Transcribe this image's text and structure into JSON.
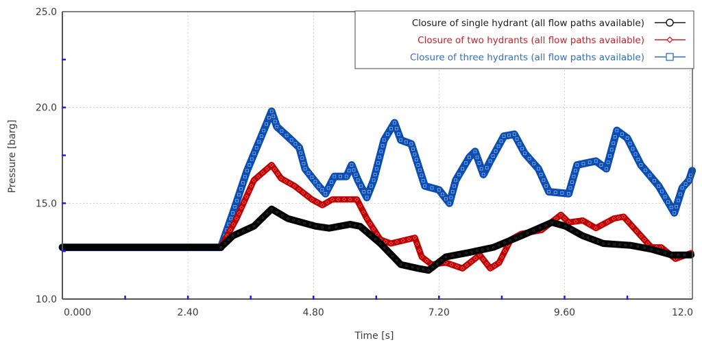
{
  "chart_data": {
    "type": "line",
    "title": "",
    "xlabel": "Time [s]",
    "ylabel": "Pressure [barg]",
    "xlim": [
      0,
      12.05
    ],
    "ylim": [
      10.0,
      25.0
    ],
    "x_ticks": [
      "0.000",
      "2.40",
      "4.80",
      "7.20",
      "9.60",
      "12.0"
    ],
    "x_tick_values": [
      0,
      2.4,
      4.8,
      7.2,
      9.6,
      12.0
    ],
    "x_minor_ticks": [
      1.2,
      3.6,
      6.0,
      8.4,
      10.8
    ],
    "y_ticks": [
      "10.0",
      "15.0",
      "20.0",
      "25.0"
    ],
    "y_tick_values": [
      10,
      15,
      20,
      25
    ],
    "y_minor_ticks": [
      12.5,
      17.5,
      22.5
    ],
    "grid": "dotted, major ticks only",
    "legend_position": "upper right, inside plot",
    "series": [
      {
        "name": "Closure of single hydrant (all flow paths available)",
        "color": "#000000",
        "marker": "circle",
        "points": [
          [
            0,
            12.7
          ],
          [
            3.03,
            12.7
          ],
          [
            3.26,
            13.3
          ],
          [
            3.66,
            13.8
          ],
          [
            4.0,
            14.7
          ],
          [
            4.31,
            14.2
          ],
          [
            4.84,
            13.8
          ],
          [
            5.1,
            13.7
          ],
          [
            5.5,
            13.9
          ],
          [
            5.69,
            13.8
          ],
          [
            6.08,
            12.9
          ],
          [
            6.47,
            11.8
          ],
          [
            6.8,
            11.6
          ],
          [
            7.0,
            11.5
          ],
          [
            7.33,
            12.2
          ],
          [
            7.72,
            12.4
          ],
          [
            8.24,
            12.7
          ],
          [
            8.77,
            13.3
          ],
          [
            9.36,
            14.0
          ],
          [
            9.62,
            13.8
          ],
          [
            9.95,
            13.3
          ],
          [
            10.34,
            12.9
          ],
          [
            10.87,
            12.8
          ],
          [
            11.26,
            12.6
          ],
          [
            11.65,
            12.3
          ],
          [
            12.02,
            12.3
          ]
        ]
      },
      {
        "name": "Closure of two hydrants (all flow paths available)",
        "color": "#c00000",
        "marker": "diamond",
        "points": [
          [
            0,
            12.7
          ],
          [
            3.03,
            12.7
          ],
          [
            3.33,
            14.2
          ],
          [
            3.66,
            16.2
          ],
          [
            4.0,
            17.0
          ],
          [
            4.18,
            16.3
          ],
          [
            4.44,
            15.9
          ],
          [
            4.77,
            15.2
          ],
          [
            4.97,
            14.9
          ],
          [
            5.16,
            15.2
          ],
          [
            5.5,
            15.2
          ],
          [
            5.63,
            15.2
          ],
          [
            5.82,
            14.2
          ],
          [
            6.08,
            13.1
          ],
          [
            6.28,
            12.9
          ],
          [
            6.74,
            13.2
          ],
          [
            6.87,
            12.2
          ],
          [
            7.06,
            11.8
          ],
          [
            7.33,
            11.9
          ],
          [
            7.65,
            11.6
          ],
          [
            7.98,
            12.3
          ],
          [
            8.18,
            11.6
          ],
          [
            8.35,
            11.9
          ],
          [
            8.57,
            13.1
          ],
          [
            8.77,
            13.4
          ],
          [
            9.16,
            13.6
          ],
          [
            9.53,
            14.4
          ],
          [
            9.68,
            14.0
          ],
          [
            9.95,
            14.1
          ],
          [
            10.2,
            13.7
          ],
          [
            10.54,
            14.2
          ],
          [
            10.73,
            14.3
          ],
          [
            11.06,
            13.3
          ],
          [
            11.26,
            12.7
          ],
          [
            11.45,
            12.7
          ],
          [
            11.72,
            12.1
          ],
          [
            12.02,
            12.4
          ]
        ]
      },
      {
        "name": "Closure of three hydrants (all flow paths available)",
        "color": "#0a4db3",
        "marker": "square",
        "points": [
          [
            0,
            12.7
          ],
          [
            3.03,
            12.7
          ],
          [
            3.26,
            14.5
          ],
          [
            3.53,
            16.7
          ],
          [
            3.85,
            18.8
          ],
          [
            4.0,
            19.8
          ],
          [
            4.1,
            19.0
          ],
          [
            4.38,
            18.3
          ],
          [
            4.53,
            17.9
          ],
          [
            4.64,
            16.8
          ],
          [
            4.9,
            15.9
          ],
          [
            5.03,
            15.5
          ],
          [
            5.2,
            16.4
          ],
          [
            5.43,
            16.4
          ],
          [
            5.53,
            17.0
          ],
          [
            5.65,
            16.2
          ],
          [
            5.82,
            15.3
          ],
          [
            5.95,
            16.2
          ],
          [
            6.15,
            18.3
          ],
          [
            6.35,
            19.2
          ],
          [
            6.47,
            18.3
          ],
          [
            6.67,
            18.1
          ],
          [
            6.8,
            17.0
          ],
          [
            6.93,
            15.9
          ],
          [
            7.2,
            15.7
          ],
          [
            7.4,
            15.0
          ],
          [
            7.52,
            16.2
          ],
          [
            7.78,
            17.4
          ],
          [
            7.89,
            17.7
          ],
          [
            8.05,
            16.5
          ],
          [
            8.18,
            17.2
          ],
          [
            8.44,
            18.5
          ],
          [
            8.64,
            18.6
          ],
          [
            8.84,
            17.6
          ],
          [
            9.1,
            16.8
          ],
          [
            9.3,
            15.6
          ],
          [
            9.68,
            15.5
          ],
          [
            9.84,
            17.0
          ],
          [
            10.2,
            17.2
          ],
          [
            10.4,
            16.8
          ],
          [
            10.6,
            18.8
          ],
          [
            10.8,
            18.4
          ],
          [
            11.06,
            17.0
          ],
          [
            11.4,
            15.9
          ],
          [
            11.7,
            14.5
          ],
          [
            11.85,
            15.8
          ],
          [
            11.98,
            16.2
          ],
          [
            12.04,
            16.7
          ]
        ]
      }
    ]
  },
  "legend": {
    "items": [
      {
        "label": "Closure of single hydrant (all flow paths available)",
        "color": "#1a1a1a"
      },
      {
        "label": "Closure of two hydrants (all flow paths available)",
        "color": "#c8202a"
      },
      {
        "label": "Closure of three hydrants (all flow paths available)",
        "color": "#2f6fc9"
      }
    ]
  },
  "axes": {
    "xlabel": "Time [s]",
    "ylabel": "Pressure [barg]"
  }
}
